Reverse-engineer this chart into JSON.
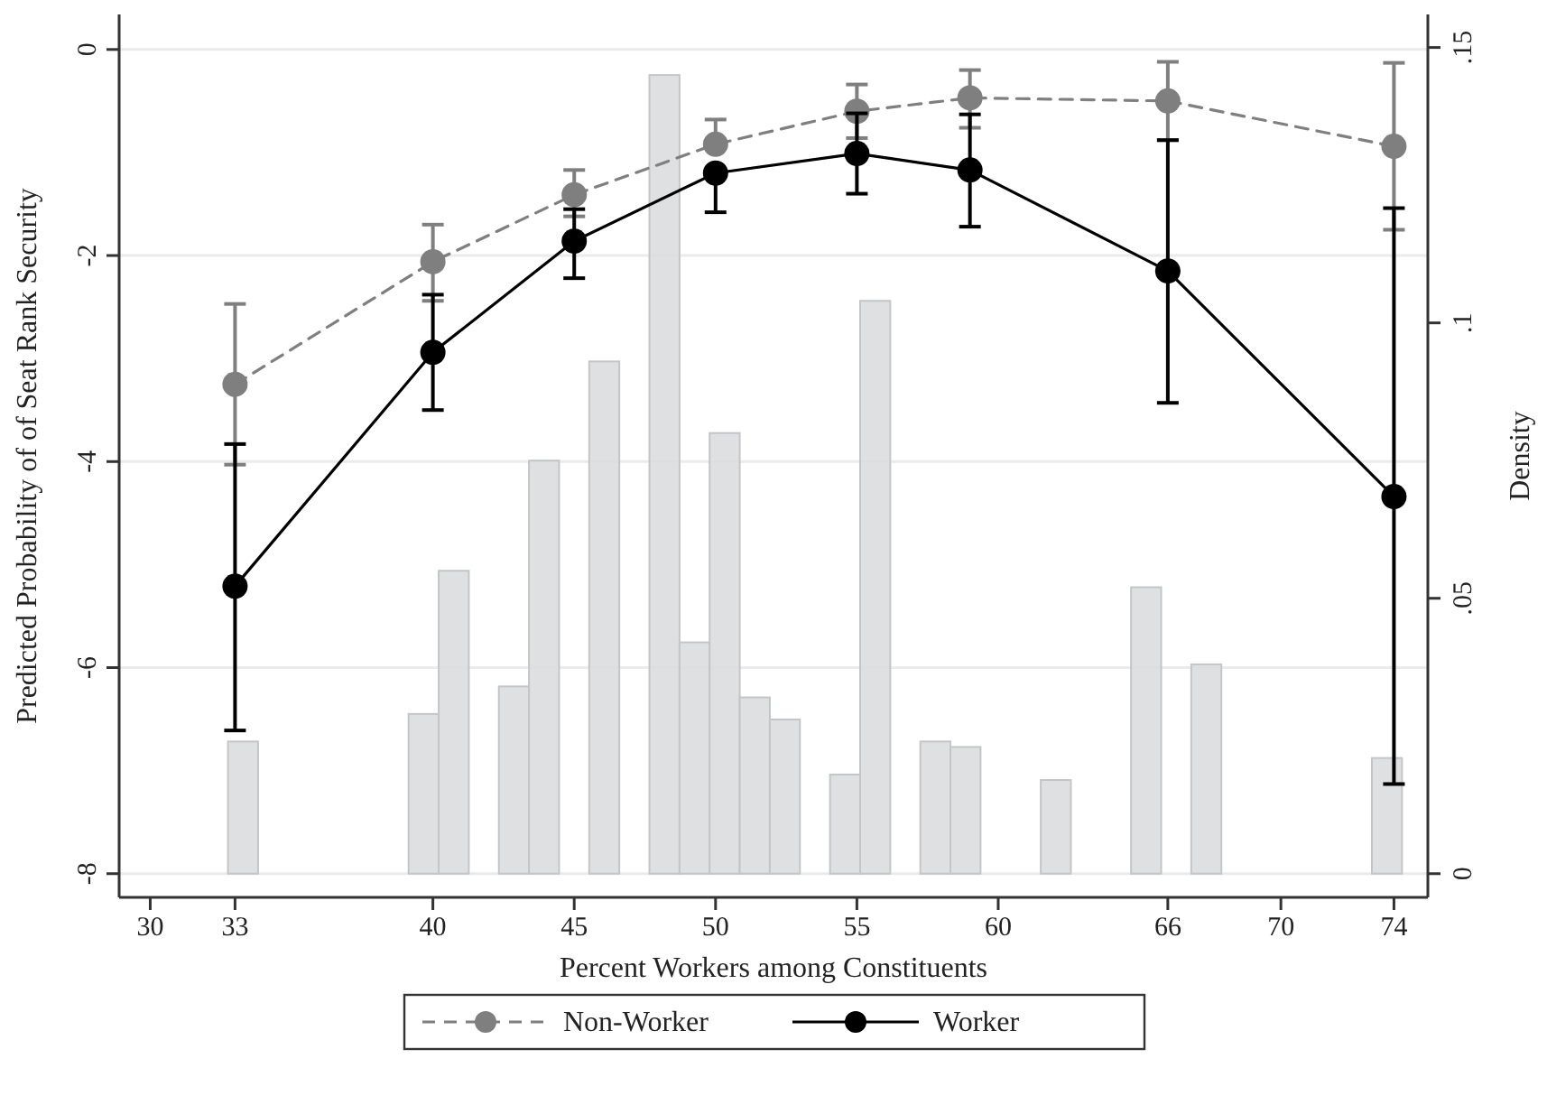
{
  "chart_data": {
    "type": "line",
    "xlabel": "Percent Workers among Constituents",
    "ylabel": "Predicted Probability of of Seat Rank Security",
    "y2label": "Density",
    "x": [
      33,
      40,
      45,
      50,
      55,
      59,
      66,
      74
    ],
    "xlim": [
      28.9,
      75.2
    ],
    "xticks": [
      30,
      33,
      40,
      45,
      50,
      55,
      60,
      66,
      70,
      74
    ],
    "ylim": [
      -8.23,
      0.34
    ],
    "yticks": [
      -8,
      -6,
      -4,
      -2,
      0
    ],
    "y2lim": [
      -0.0043,
      0.156
    ],
    "y2ticks": [
      0,
      {
        "value": 0.05,
        "label": ".05"
      },
      {
        "value": 0.1,
        "label": ".1"
      },
      {
        "value": 0.15,
        "label": ".15"
      }
    ],
    "grid": "y",
    "legend": "bottom",
    "marker": "circle",
    "series": [
      {
        "type": "histogram",
        "axis": "y2",
        "color": "#dcdddf",
        "bins": [
          32.75,
          33.815,
          34.88,
          35.945,
          37.01,
          38.075,
          39.14,
          40.205,
          41.27,
          42.335,
          43.4,
          44.465,
          45.53,
          46.595,
          47.66,
          48.725,
          49.79,
          50.855,
          51.92,
          52.985,
          54.05,
          55.115,
          56.18,
          57.245,
          58.31,
          59.375,
          60.44,
          61.505,
          62.57,
          63.635,
          64.7,
          65.765,
          66.83,
          67.895,
          68.96,
          70.025,
          71.09,
          72.155,
          73.22,
          74.285
        ],
        "values": [
          0.024,
          0,
          0,
          0,
          0,
          0,
          0.029,
          0.055,
          0,
          0.034,
          0.075,
          0,
          0.093,
          0,
          0.145,
          0.042,
          0.08,
          0.032,
          0.028,
          0,
          0.018,
          0.104,
          0,
          0.024,
          0.023,
          0,
          0,
          0.017,
          0,
          0,
          0.052,
          0,
          0.038,
          0,
          0,
          0,
          0,
          0,
          0.021
        ]
      },
      {
        "name": "Non-Worker",
        "color": "#7f7f7f",
        "line_style": "dashed",
        "values": [
          -3.25,
          -2.06,
          -1.41,
          -0.92,
          -0.6,
          -0.47,
          -0.5,
          -0.94
        ],
        "errors": [
          [
            -4.03,
            -2.47
          ],
          [
            -2.44,
            -1.7
          ],
          [
            -1.62,
            -1.17
          ],
          [
            -0.92,
            -0.68
          ],
          [
            -0.86,
            -0.34
          ],
          [
            -0.76,
            -0.2
          ],
          [
            -0.88,
            -0.12
          ],
          [
            -1.75,
            -0.13
          ]
        ]
      },
      {
        "name": "Worker",
        "color": "#000000",
        "line_style": "solid",
        "values": [
          -5.21,
          -2.94,
          -1.86,
          -1.2,
          -1.01,
          -1.17,
          -2.15,
          -4.34
        ],
        "errors": [
          [
            -6.61,
            -3.83
          ],
          [
            -3.5,
            -2.38
          ],
          [
            -2.22,
            -1.55
          ],
          [
            -1.58,
            -1.2
          ],
          [
            -1.4,
            -0.62
          ],
          [
            -1.72,
            -0.63
          ],
          [
            -3.43,
            -0.88
          ],
          [
            -7.13,
            -1.54
          ]
        ]
      }
    ]
  }
}
